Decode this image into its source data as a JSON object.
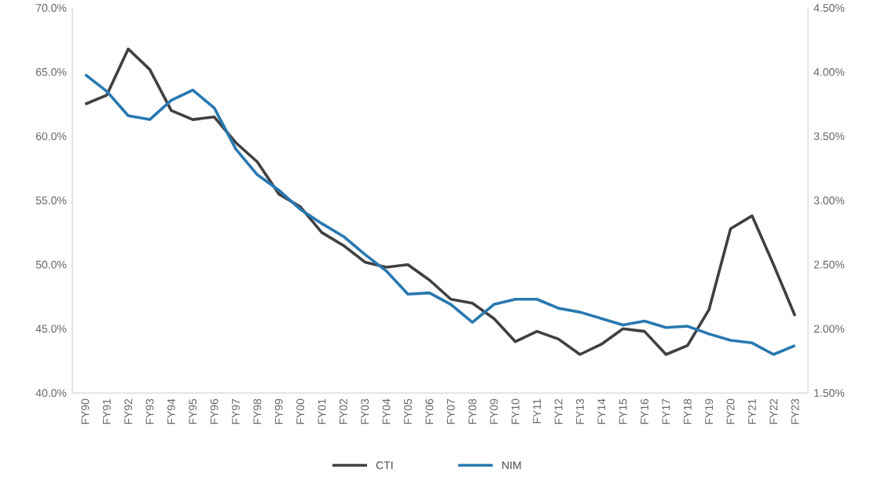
{
  "chart_data": {
    "type": "line",
    "categories": [
      "FY90",
      "FY91",
      "FY92",
      "FY93",
      "FY94",
      "FY95",
      "FY96",
      "FY97",
      "FY98",
      "FY99",
      "FY00",
      "FY01",
      "FY02",
      "FY03",
      "FY04",
      "FY05",
      "FY06",
      "FY07",
      "FY08",
      "FY09",
      "FY10",
      "FY11",
      "FY12",
      "FY13",
      "FY14",
      "FY15",
      "FY16",
      "FY17",
      "FY18",
      "FY19",
      "FY20",
      "FY21",
      "FY22",
      "FY23"
    ],
    "series": [
      {
        "name": "CTI",
        "color": "#404040",
        "values": [
          62.5,
          63.2,
          66.8,
          65.2,
          62.0,
          61.3,
          61.5,
          59.5,
          58.0,
          55.5,
          54.5,
          52.5,
          51.5,
          50.2,
          49.8,
          50.0,
          48.8,
          47.3,
          47.0,
          45.8,
          44.0,
          44.8,
          44.2,
          43.0,
          43.8,
          45.0,
          44.8,
          43.0,
          43.7,
          46.5,
          52.8,
          53.8,
          50.0,
          46.0
        ]
      },
      {
        "name": "NIM",
        "color": "#2878b0",
        "axis": "y2",
        "values": [
          3.98,
          3.85,
          3.66,
          3.63,
          3.78,
          3.86,
          3.72,
          3.4,
          3.2,
          3.08,
          2.93,
          2.82,
          2.72,
          2.58,
          2.45,
          2.27,
          2.28,
          2.19,
          2.05,
          2.19,
          2.23,
          2.23,
          2.16,
          2.13,
          2.08,
          2.03,
          2.06,
          2.01,
          2.02,
          1.96,
          1.91,
          1.89,
          1.8,
          1.87
        ]
      }
    ],
    "ylim": [
      40,
      70
    ],
    "yticks": [
      {
        "value": 40,
        "label": "40.0%"
      },
      {
        "value": 45,
        "label": "45.0%"
      },
      {
        "value": 50,
        "label": "50.0%"
      },
      {
        "value": 55,
        "label": "55.0%"
      },
      {
        "value": 60,
        "label": "60.0%"
      },
      {
        "value": 65,
        "label": "65.0%"
      },
      {
        "value": 70,
        "label": "70.0%"
      }
    ],
    "y2lim": [
      1.5,
      4.5
    ],
    "y2ticks": [
      {
        "value": 1.5,
        "label": "1.50%"
      },
      {
        "value": 2.0,
        "label": "2.00%"
      },
      {
        "value": 2.5,
        "label": "2.50%"
      },
      {
        "value": 3.0,
        "label": "3.00%"
      },
      {
        "value": 3.5,
        "label": "3.50%"
      },
      {
        "value": 4.0,
        "label": "4.00%"
      },
      {
        "value": 4.5,
        "label": "4.50%"
      }
    ],
    "legend": "bottom",
    "grid": false,
    "marker": "none",
    "line_style": "solid"
  }
}
